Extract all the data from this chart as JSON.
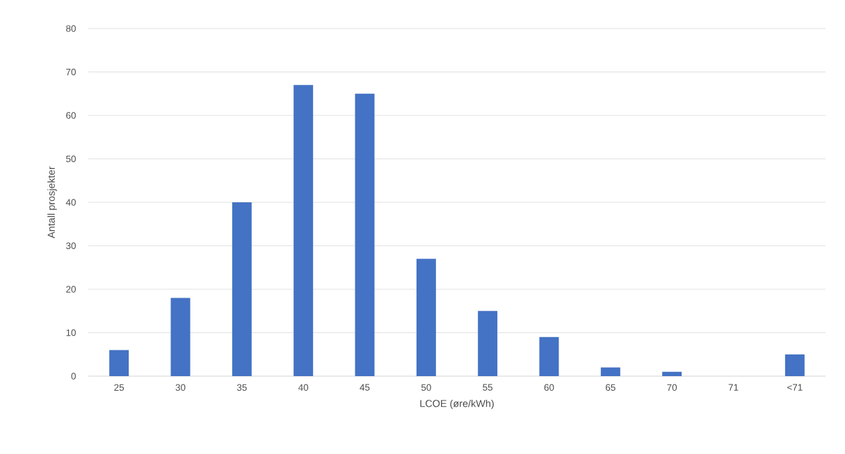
{
  "chart_data": {
    "type": "bar",
    "xlabel": "LCOE (øre/kWh)",
    "ylabel": "Antall prosjekter",
    "categories": [
      "25",
      "30",
      "35",
      "40",
      "45",
      "50",
      "55",
      "60",
      "65",
      "70",
      "71",
      "<71"
    ],
    "values": [
      6,
      18,
      40,
      67,
      65,
      27,
      15,
      9,
      2,
      1,
      0,
      5
    ],
    "color": "#4472c4",
    "ylim": [
      0,
      80
    ],
    "yticks": [
      0,
      10,
      20,
      30,
      40,
      50,
      60,
      70,
      80
    ],
    "grid": "y"
  }
}
